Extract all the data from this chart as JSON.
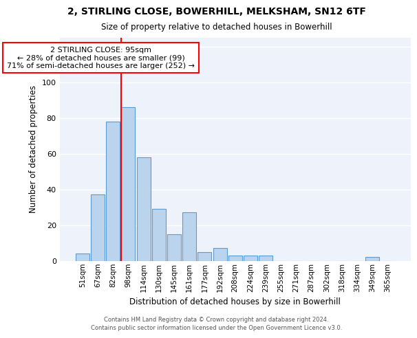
{
  "title1": "2, STIRLING CLOSE, BOWERHILL, MELKSHAM, SN12 6TF",
  "title2": "Size of property relative to detached houses in Bowerhill",
  "xlabel": "Distribution of detached houses by size in Bowerhill",
  "ylabel": "Number of detached properties",
  "categories": [
    "51sqm",
    "67sqm",
    "82sqm",
    "98sqm",
    "114sqm",
    "130sqm",
    "145sqm",
    "161sqm",
    "177sqm",
    "192sqm",
    "208sqm",
    "224sqm",
    "239sqm",
    "255sqm",
    "271sqm",
    "287sqm",
    "302sqm",
    "318sqm",
    "334sqm",
    "349sqm",
    "365sqm"
  ],
  "values": [
    4,
    37,
    78,
    86,
    58,
    29,
    15,
    27,
    5,
    7,
    3,
    3,
    3,
    0,
    0,
    0,
    0,
    0,
    0,
    2,
    0
  ],
  "bar_color": "#bad4ed",
  "bar_edge_color": "#5b9bd5",
  "red_line_index": 3,
  "annotation_title": "2 STIRLING CLOSE: 95sqm",
  "annotation_line1": "← 28% of detached houses are smaller (99)",
  "annotation_line2": "71% of semi-detached houses are larger (252) →",
  "ylim": [
    0,
    125
  ],
  "yticks": [
    0,
    20,
    40,
    60,
    80,
    100,
    120
  ],
  "background_color": "#eef2fb",
  "footer1": "Contains HM Land Registry data © Crown copyright and database right 2024.",
  "footer2": "Contains public sector information licensed under the Open Government Licence v3.0."
}
